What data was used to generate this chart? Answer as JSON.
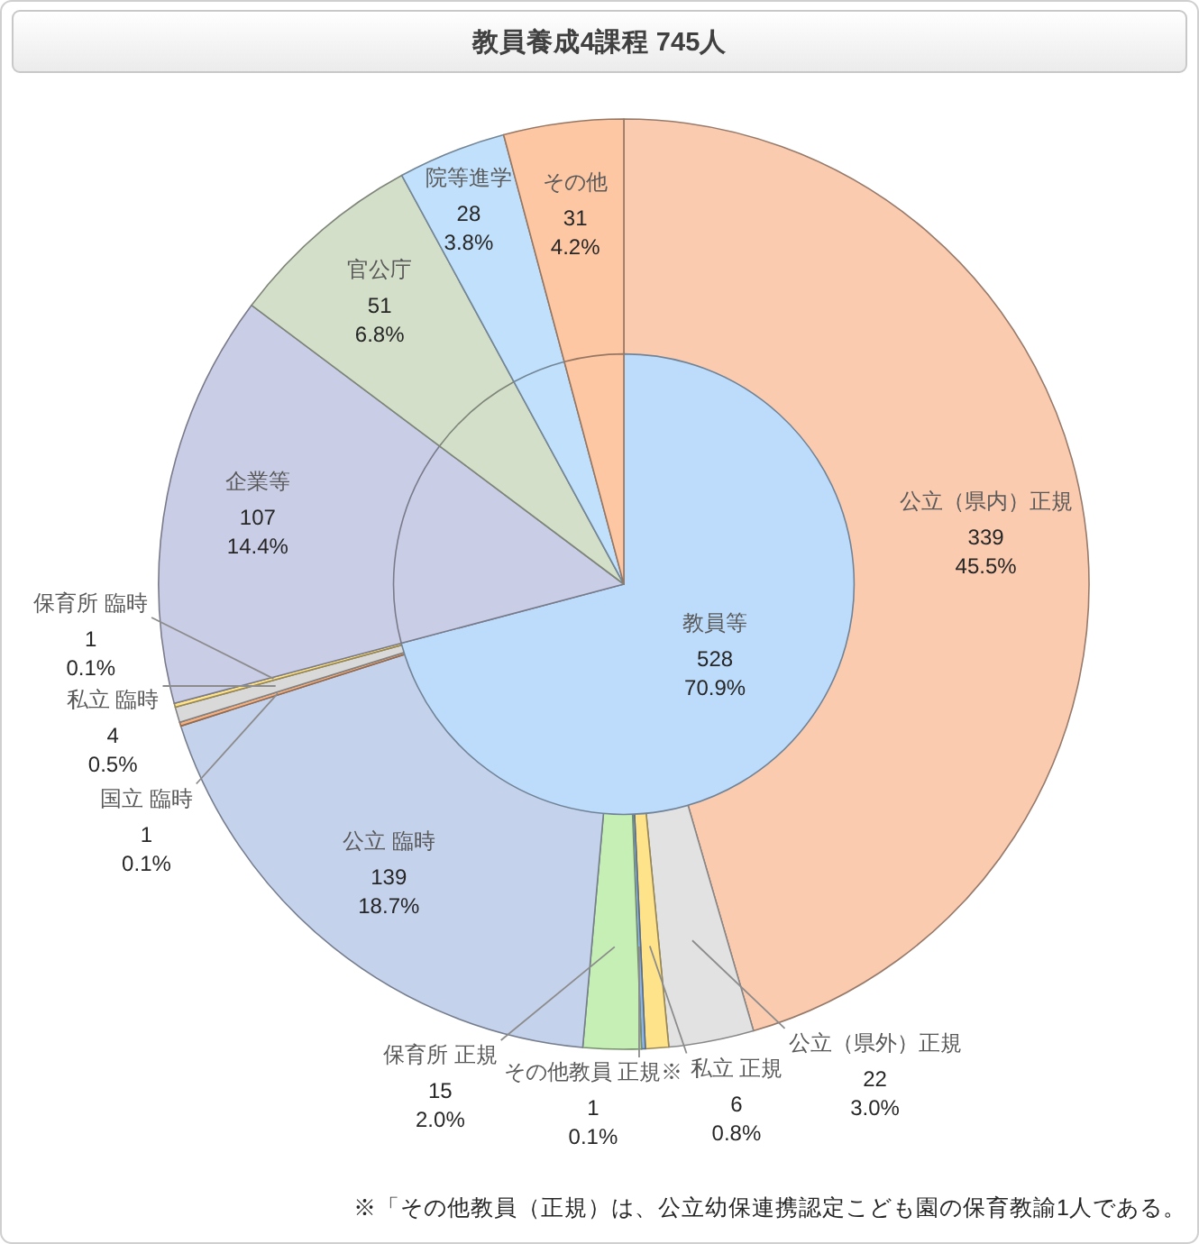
{
  "chart_data": [
    {
      "type": "pie",
      "title": "教員養成4課程 745人",
      "categories": [
        "公立（県内）正規",
        "公立（県外）正規",
        "私立 正規",
        "その他教員 正規※",
        "保育所 正規",
        "公立 臨時",
        "国立 臨時",
        "私立 臨時",
        "保育所 臨時",
        "企業等",
        "官公庁",
        "院等進学",
        "その他"
      ],
      "values": [
        339,
        22,
        6,
        1,
        15,
        139,
        1,
        4,
        1,
        107,
        51,
        28,
        31
      ],
      "colors": [
        "#fbcbb0",
        "#e2e2e2",
        "#ffe38a",
        "#8eb4e3",
        "#c5efb4",
        "#c5d2ec",
        "#f4b183",
        "#d9d9d9",
        "#ffe38a",
        "#c9cde6",
        "#d3dfc9",
        "#c0e0fb",
        "#fdc7a3"
      ],
      "value_labels": [
        "339\n45.5%",
        "22\n3.0%",
        "6\n0.8%",
        "1\n0.1%",
        "15\n2.0%",
        "139\n18.7%",
        "1\n0.1%",
        "4\n0.5%",
        "1\n0.1%",
        "107\n14.4%",
        "51\n6.8%",
        "28\n3.8%",
        "31\n4.2%"
      ],
      "annotations": [
        "※「その他教員（正規）は、公立幼保連携認定こども園の保育教諭1人である。"
      ]
    },
    {
      "type": "pie",
      "categories": [
        "教員等",
        null,
        null,
        null,
        null
      ],
      "values": [
        528,
        107,
        51,
        28,
        31
      ],
      "colors": [
        "#bddcfb",
        "#c9cde6",
        "#d3dfc9",
        "#c0e0fb",
        "#fdc7a3"
      ],
      "value_labels": [
        "528\n70.9%",
        null,
        null,
        null,
        null
      ]
    }
  ]
}
